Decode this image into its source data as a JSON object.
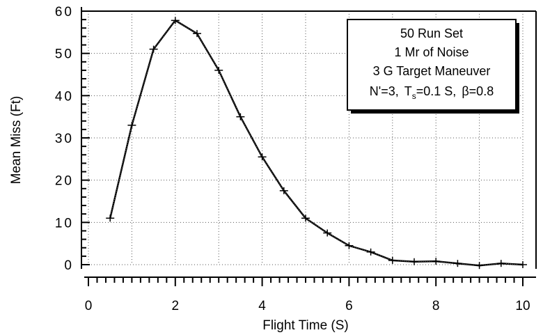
{
  "chart_data": {
    "type": "line",
    "xlabel": "Flight Time (S)",
    "ylabel": "Mean Miss (Ft)",
    "xlim": [
      0,
      10
    ],
    "ylim": [
      0,
      60
    ],
    "x_ticks": [
      "0",
      "2",
      "4",
      "6",
      "8",
      "10"
    ],
    "y_ticks": [
      "0",
      "10",
      "20",
      "30",
      "40",
      "50",
      "60"
    ],
    "grid": true,
    "legend": {
      "placement": "top-right",
      "lines": [
        "50 Run Set",
        "1 Mr of Noise",
        "3 G Target Maneuver"
      ],
      "params": {
        "n": "N'=3,",
        "ts_pre": "T",
        "ts_sub": "s",
        "ts_post": "=0.1 S,",
        "beta": "β=0.8"
      }
    },
    "series": [
      {
        "x": [
          0.5,
          1.0,
          1.5,
          2.0,
          2.5,
          3.0,
          3.5,
          4.0,
          4.5,
          5.0,
          5.5,
          6.0,
          6.5,
          7.0,
          7.5,
          8.0,
          8.5,
          9.0,
          9.5,
          10.0
        ],
        "y": [
          11.0,
          33.0,
          51.0,
          57.8,
          54.7,
          46.0,
          35.0,
          25.5,
          17.5,
          11.0,
          7.5,
          4.5,
          3.0,
          1.0,
          0.7,
          0.8,
          0.3,
          -0.2,
          0.3,
          0.0
        ]
      }
    ]
  }
}
